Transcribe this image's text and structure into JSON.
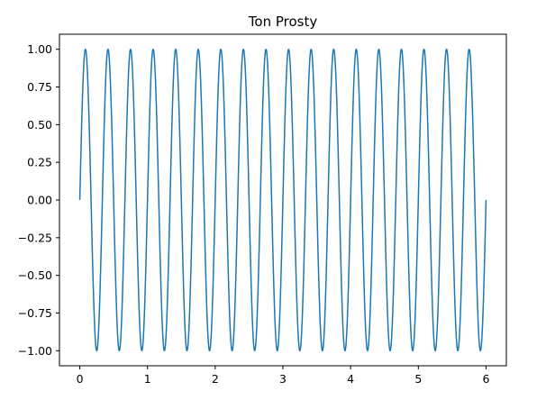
{
  "chart_data": {
    "type": "line",
    "title": "Ton Prosty",
    "xlabel": "",
    "ylabel": "",
    "xlim": [
      -0.3,
      6.3
    ],
    "ylim": [
      -1.1,
      1.1
    ],
    "x_ticks": [
      "0",
      "1",
      "2",
      "3",
      "4",
      "5",
      "6"
    ],
    "y_ticks": [
      "-1.00",
      "-0.75",
      "-0.50",
      "-0.25",
      "0.00",
      "0.25",
      "0.50",
      "0.75",
      "1.00"
    ],
    "grid": false,
    "legend": "none",
    "series": [
      {
        "color": "#1f77b4",
        "function": "sine",
        "amplitude": 1.0,
        "frequency_hz": 3.0,
        "x_start": 0,
        "x_end": 6,
        "y_at_end": 0.18
      }
    ]
  }
}
